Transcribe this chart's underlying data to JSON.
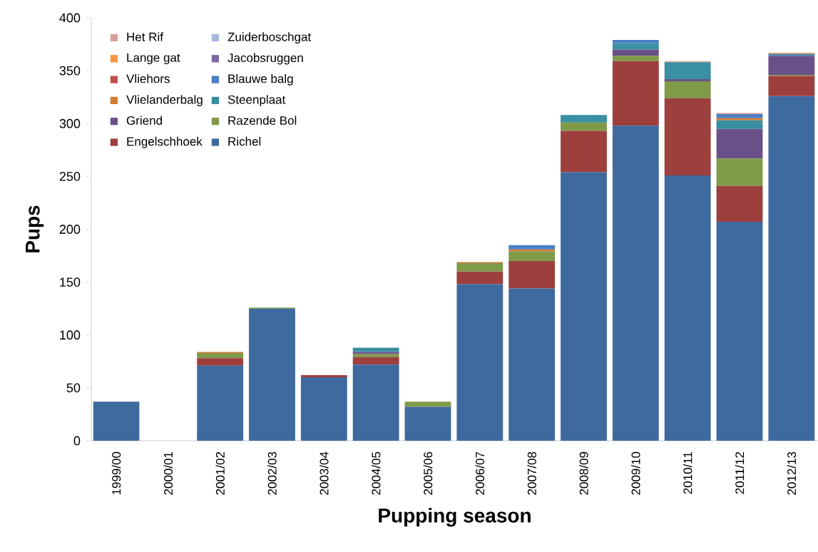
{
  "chart_data": {
    "type": "bar",
    "stacked": true,
    "xlabel": "Pupping season",
    "ylabel": "Pups",
    "categories": [
      "1999/00",
      "2000/01",
      "2001/02",
      "2002/03",
      "2003/04",
      "2004/05",
      "2005/06",
      "2006/07",
      "2007/08",
      "2008/09",
      "2009/10",
      "2010/11",
      "2011/12",
      "2012/13"
    ],
    "ylim": [
      0,
      400
    ],
    "yticks": [
      0,
      50,
      100,
      150,
      200,
      250,
      300,
      350,
      400
    ],
    "legend": "top left",
    "series": [
      {
        "name": "Richel",
        "color": "#3e6aa0",
        "values": [
          37,
          0,
          71,
          125,
          60,
          72,
          32,
          148,
          144,
          254,
          298,
          251,
          207,
          326
        ]
      },
      {
        "name": "Engelschhoek",
        "color": "#9c3f3d",
        "values": [
          0,
          0,
          7,
          0,
          2,
          7,
          0,
          12,
          26,
          39,
          61,
          73,
          34,
          19
        ]
      },
      {
        "name": "Razende Bol",
        "color": "#7f9a48",
        "values": [
          0,
          0,
          5,
          1,
          0,
          3,
          5,
          8,
          9,
          8,
          5,
          16,
          26,
          1
        ]
      },
      {
        "name": "Griend",
        "color": "#6a5089",
        "values": [
          0,
          0,
          0,
          0,
          0,
          2,
          0,
          0,
          0,
          0,
          6,
          2,
          28,
          18
        ]
      },
      {
        "name": "Steenplaat",
        "color": "#3a8fa2",
        "values": [
          0,
          0,
          0,
          0,
          0,
          4,
          0,
          0,
          0,
          7,
          6,
          16,
          8,
          1
        ]
      },
      {
        "name": "Vlielanderbalg",
        "color": "#d37b35",
        "values": [
          0,
          0,
          1,
          0,
          0,
          0,
          0,
          1,
          2,
          0,
          0,
          0,
          2,
          0
        ]
      },
      {
        "name": "Blauwe balg",
        "color": "#4a7fc4",
        "values": [
          0,
          0,
          0,
          0,
          0,
          0,
          0,
          0,
          4,
          0,
          3,
          0,
          4,
          1
        ]
      },
      {
        "name": "Vliehors",
        "color": "#c0504d",
        "values": [
          0,
          0,
          0,
          0,
          0,
          0,
          0,
          0,
          0,
          0,
          0,
          0,
          0,
          0
        ]
      },
      {
        "name": "Jacobsruggen",
        "color": "#8064a2",
        "values": [
          0,
          0,
          0,
          0,
          0,
          0,
          0,
          0,
          0,
          0,
          0,
          0,
          0,
          0
        ]
      },
      {
        "name": "Lange gat",
        "color": "#f79646",
        "values": [
          0,
          0,
          0,
          0,
          0,
          0,
          0,
          0,
          0,
          0,
          0,
          0,
          0,
          1
        ]
      },
      {
        "name": "Zuiderboschgat",
        "color": "#a5b8dc",
        "values": [
          0,
          0,
          0,
          0,
          0,
          0,
          0,
          0,
          0,
          0,
          0,
          0,
          0,
          0
        ]
      },
      {
        "name": "Het Rif",
        "color": "#d9a0a0",
        "values": [
          0,
          0,
          0,
          0,
          0,
          0,
          0,
          0,
          0,
          0,
          0,
          1,
          1,
          0
        ]
      }
    ]
  }
}
